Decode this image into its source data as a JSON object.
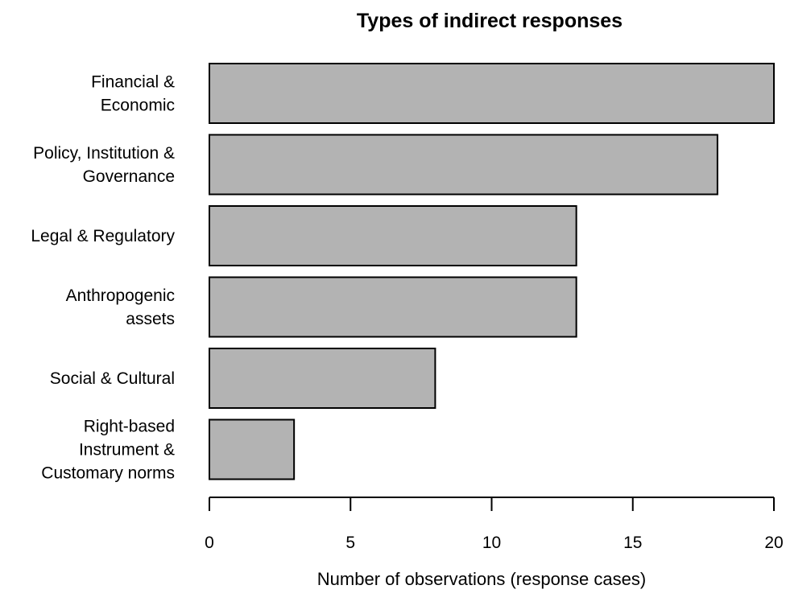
{
  "chart_data": {
    "type": "bar",
    "orientation": "horizontal",
    "title": "Types of indirect responses",
    "xlabel": "Number of observations (response cases)",
    "ylabel": "",
    "categories": [
      [
        "Financial &",
        "Economic"
      ],
      [
        "Policy, Institution &",
        "Governance"
      ],
      [
        "Legal & Regulatory"
      ],
      [
        "Anthropogenic",
        "assets"
      ],
      [
        "Social & Cultural"
      ],
      [
        "Right-based",
        "Instrument &",
        "Customary norms"
      ]
    ],
    "values": [
      20,
      18,
      13,
      13,
      8,
      3
    ],
    "xlim": [
      0,
      20
    ],
    "xticks": [
      "0",
      "5",
      "10",
      "15",
      "20"
    ],
    "grid": false,
    "legend": "none",
    "colors": {
      "bar_fill": "#b3b3b3",
      "bar_stroke": "#000000",
      "axis": "#000000",
      "text": "#000000",
      "background": "#ffffff"
    }
  }
}
